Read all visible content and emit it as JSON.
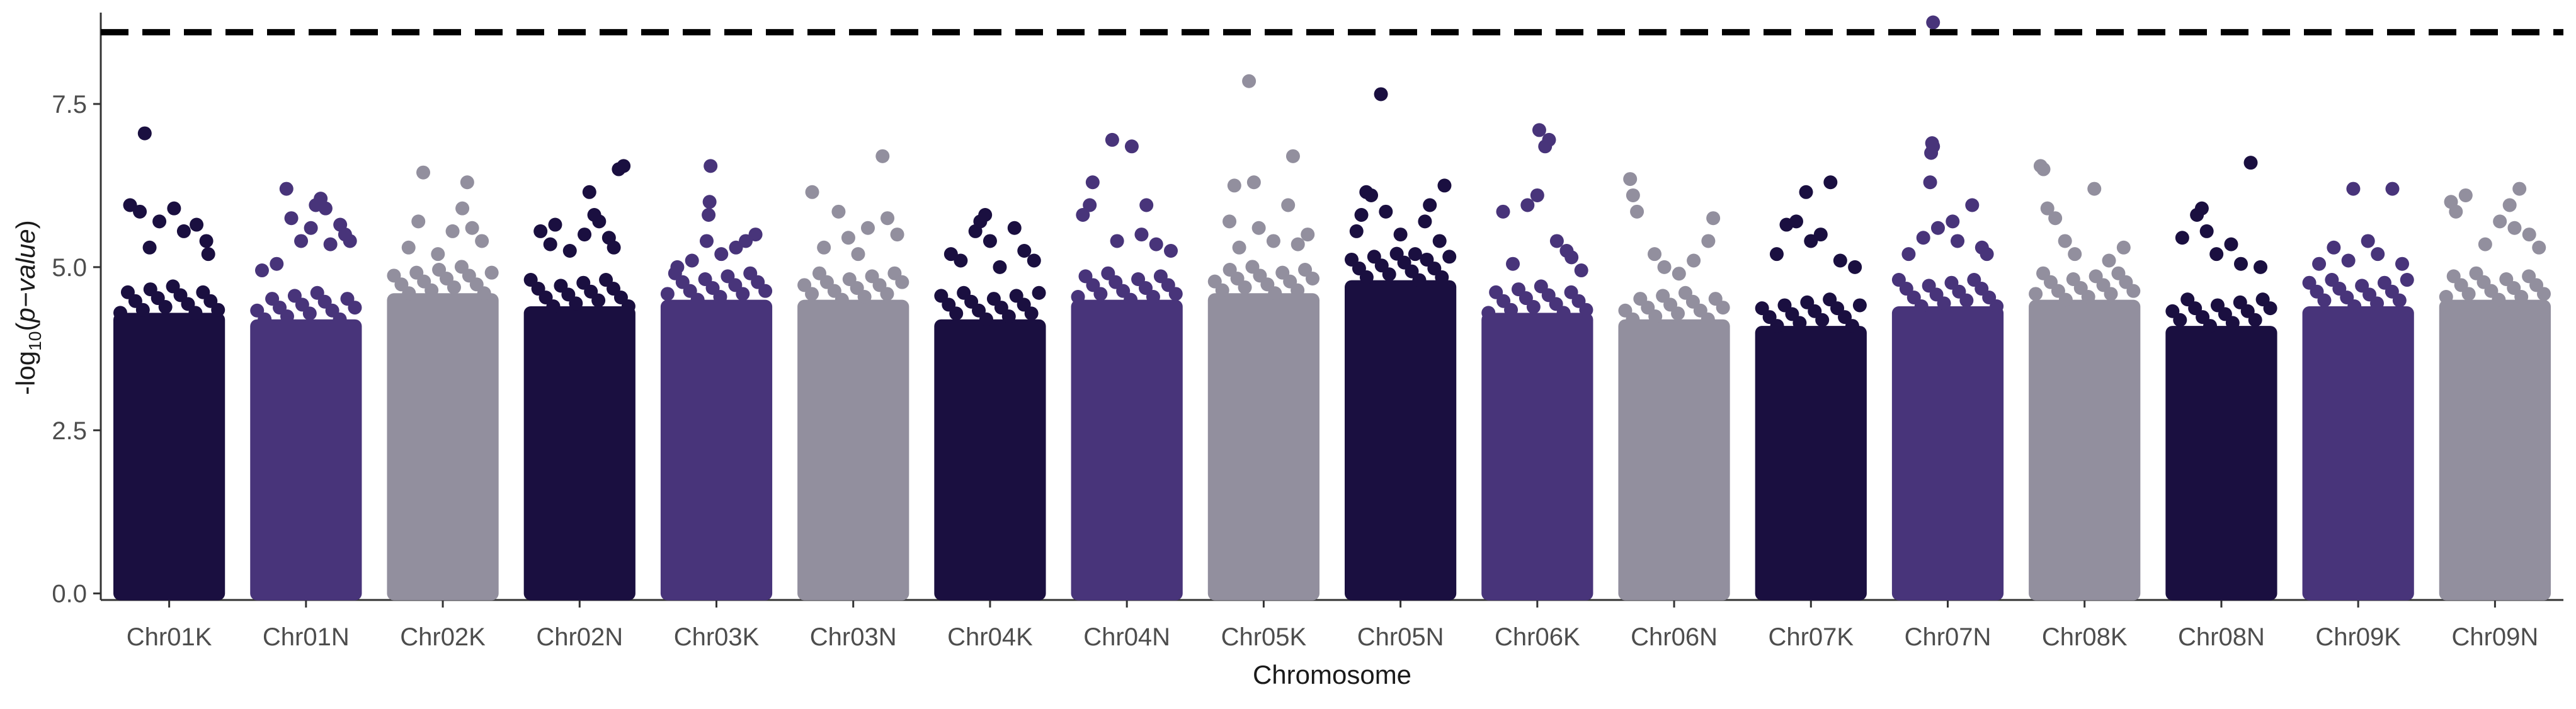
{
  "chart_data": {
    "type": "scatter",
    "subtype": "manhattan",
    "title": "",
    "xlabel": "Chromosome",
    "ylabel": {
      "prefix": "-log",
      "sub": "10",
      "open": "(",
      "italic": "p−value",
      "close": ")"
    },
    "ylim": [
      -0.1,
      8.9
    ],
    "y_ticks": [
      0.0,
      2.5,
      5.0,
      7.5
    ],
    "y_tick_labels": [
      "0.0",
      "2.5",
      "5.0",
      "7.5"
    ],
    "threshold": {
      "value": 8.6,
      "style": "dashed",
      "color": "#000000"
    },
    "grid": false,
    "legend": "none",
    "palette": [
      "#1a0f40",
      "#48347a",
      "#928f9e"
    ],
    "categories": [
      "Chr01K",
      "Chr01N",
      "Chr02K",
      "Chr02N",
      "Chr03K",
      "Chr03N",
      "Chr04K",
      "Chr04N",
      "Chr05K",
      "Chr05N",
      "Chr06K",
      "Chr06N",
      "Chr07K",
      "Chr07N",
      "Chr08K",
      "Chr08N",
      "Chr09K",
      "Chr09N"
    ],
    "series": [
      {
        "chrom": "Chr01K",
        "color_index": 0,
        "dense_max": 4.3,
        "points": [
          [
            0.1,
            5.95
          ],
          [
            0.2,
            5.85
          ],
          [
            0.3,
            5.3
          ],
          [
            0.4,
            5.7
          ],
          [
            0.55,
            5.9
          ],
          [
            0.65,
            5.55
          ],
          [
            0.78,
            5.65
          ],
          [
            0.88,
            5.4
          ],
          [
            0.25,
            7.05
          ],
          [
            0.9,
            5.2
          ]
        ]
      },
      {
        "chrom": "Chr01N",
        "color_index": 1,
        "dense_max": 4.2,
        "points": [
          [
            0.05,
            4.95
          ],
          [
            0.2,
            5.05
          ],
          [
            0.3,
            6.2
          ],
          [
            0.35,
            5.75
          ],
          [
            0.45,
            5.4
          ],
          [
            0.55,
            5.6
          ],
          [
            0.6,
            5.95
          ],
          [
            0.65,
            6.05
          ],
          [
            0.7,
            5.9
          ],
          [
            0.75,
            5.35
          ],
          [
            0.85,
            5.65
          ],
          [
            0.9,
            5.5
          ],
          [
            0.95,
            5.4
          ]
        ]
      },
      {
        "chrom": "Chr02K",
        "color_index": 2,
        "dense_max": 4.6,
        "points": [
          [
            0.15,
            5.3
          ],
          [
            0.25,
            5.7
          ],
          [
            0.3,
            6.45
          ],
          [
            0.45,
            5.2
          ],
          [
            0.6,
            5.55
          ],
          [
            0.7,
            5.9
          ],
          [
            0.75,
            6.3
          ],
          [
            0.8,
            5.6
          ],
          [
            0.9,
            5.4
          ]
        ]
      },
      {
        "chrom": "Chr02N",
        "color_index": 0,
        "dense_max": 4.4,
        "points": [
          [
            0.1,
            5.55
          ],
          [
            0.2,
            5.35
          ],
          [
            0.25,
            5.65
          ],
          [
            0.4,
            5.25
          ],
          [
            0.55,
            5.5
          ],
          [
            0.6,
            6.15
          ],
          [
            0.65,
            5.8
          ],
          [
            0.7,
            5.7
          ],
          [
            0.8,
            5.45
          ],
          [
            0.9,
            6.5
          ],
          [
            0.95,
            6.55
          ],
          [
            0.85,
            5.3
          ]
        ]
      },
      {
        "chrom": "Chr03K",
        "color_index": 1,
        "dense_max": 4.5,
        "points": [
          [
            0.1,
            5.0
          ],
          [
            0.25,
            5.1
          ],
          [
            0.4,
            5.4
          ],
          [
            0.42,
            5.8
          ],
          [
            0.43,
            6.0
          ],
          [
            0.44,
            6.55
          ],
          [
            0.55,
            5.2
          ],
          [
            0.7,
            5.3
          ],
          [
            0.8,
            5.4
          ],
          [
            0.9,
            5.5
          ]
        ]
      },
      {
        "chrom": "Chr03N",
        "color_index": 2,
        "dense_max": 4.5,
        "points": [
          [
            0.08,
            6.15
          ],
          [
            0.2,
            5.3
          ],
          [
            0.35,
            5.85
          ],
          [
            0.45,
            5.45
          ],
          [
            0.55,
            5.2
          ],
          [
            0.65,
            5.6
          ],
          [
            0.8,
            6.7
          ],
          [
            0.85,
            5.75
          ],
          [
            0.95,
            5.5
          ]
        ]
      },
      {
        "chrom": "Chr04K",
        "color_index": 0,
        "dense_max": 4.2,
        "points": [
          [
            0.1,
            5.2
          ],
          [
            0.2,
            5.1
          ],
          [
            0.35,
            5.55
          ],
          [
            0.4,
            5.7
          ],
          [
            0.45,
            5.8
          ],
          [
            0.5,
            5.4
          ],
          [
            0.6,
            5.0
          ],
          [
            0.75,
            5.6
          ],
          [
            0.85,
            5.25
          ],
          [
            0.95,
            5.1
          ]
        ]
      },
      {
        "chrom": "Chr04N",
        "color_index": 1,
        "dense_max": 4.5,
        "points": [
          [
            0.05,
            5.8
          ],
          [
            0.12,
            5.95
          ],
          [
            0.15,
            6.3
          ],
          [
            0.35,
            6.95
          ],
          [
            0.4,
            5.4
          ],
          [
            0.55,
            6.85
          ],
          [
            0.65,
            5.5
          ],
          [
            0.7,
            5.95
          ],
          [
            0.8,
            5.35
          ],
          [
            0.95,
            5.25
          ]
        ]
      },
      {
        "chrom": "Chr05K",
        "color_index": 2,
        "dense_max": 4.6,
        "points": [
          [
            0.15,
            5.7
          ],
          [
            0.2,
            6.25
          ],
          [
            0.25,
            5.3
          ],
          [
            0.35,
            7.85
          ],
          [
            0.4,
            6.3
          ],
          [
            0.45,
            5.6
          ],
          [
            0.6,
            5.4
          ],
          [
            0.75,
            5.95
          ],
          [
            0.8,
            6.7
          ],
          [
            0.85,
            5.35
          ],
          [
            0.95,
            5.5
          ]
        ]
      },
      {
        "chrom": "Chr05N",
        "color_index": 0,
        "dense_max": 4.8,
        "points": [
          [
            0.05,
            5.55
          ],
          [
            0.1,
            5.8
          ],
          [
            0.15,
            6.15
          ],
          [
            0.2,
            6.1
          ],
          [
            0.3,
            7.65
          ],
          [
            0.35,
            5.85
          ],
          [
            0.5,
            5.5
          ],
          [
            0.65,
            5.2
          ],
          [
            0.75,
            5.7
          ],
          [
            0.8,
            5.95
          ],
          [
            0.9,
            5.4
          ],
          [
            0.95,
            6.25
          ]
        ]
      },
      {
        "chrom": "Chr06K",
        "color_index": 1,
        "dense_max": 4.3,
        "points": [
          [
            0.15,
            5.85
          ],
          [
            0.25,
            5.05
          ],
          [
            0.4,
            5.95
          ],
          [
            0.5,
            6.1
          ],
          [
            0.52,
            7.1
          ],
          [
            0.58,
            6.85
          ],
          [
            0.62,
            6.95
          ],
          [
            0.7,
            5.4
          ],
          [
            0.8,
            5.25
          ],
          [
            0.85,
            5.15
          ],
          [
            0.95,
            4.95
          ]
        ]
      },
      {
        "chrom": "Chr06N",
        "color_index": 2,
        "dense_max": 4.2,
        "points": [
          [
            0.05,
            6.35
          ],
          [
            0.08,
            6.1
          ],
          [
            0.12,
            5.85
          ],
          [
            0.3,
            5.2
          ],
          [
            0.4,
            5.0
          ],
          [
            0.55,
            4.9
          ],
          [
            0.7,
            5.1
          ],
          [
            0.85,
            5.4
          ],
          [
            0.9,
            5.75
          ]
        ]
      },
      {
        "chrom": "Chr07K",
        "color_index": 0,
        "dense_max": 4.1,
        "points": [
          [
            0.15,
            5.2
          ],
          [
            0.25,
            5.65
          ],
          [
            0.35,
            5.7
          ],
          [
            0.45,
            6.15
          ],
          [
            0.5,
            5.4
          ],
          [
            0.6,
            5.5
          ],
          [
            0.7,
            6.3
          ],
          [
            0.8,
            5.1
          ],
          [
            0.95,
            5.0
          ]
        ]
      },
      {
        "chrom": "Chr07N",
        "color_index": 1,
        "dense_max": 4.4,
        "points": [
          [
            0.1,
            5.2
          ],
          [
            0.25,
            5.45
          ],
          [
            0.32,
            6.3
          ],
          [
            0.33,
            6.75
          ],
          [
            0.34,
            6.9
          ],
          [
            0.35,
            6.85
          ],
          [
            0.4,
            5.6
          ],
          [
            0.55,
            5.7
          ],
          [
            0.6,
            5.4
          ],
          [
            0.75,
            5.95
          ],
          [
            0.85,
            5.3
          ],
          [
            0.9,
            5.2
          ],
          [
            0.35,
            8.75
          ]
        ]
      },
      {
        "chrom": "Chr08K",
        "color_index": 2,
        "dense_max": 4.5,
        "points": [
          [
            0.05,
            6.55
          ],
          [
            0.08,
            6.5
          ],
          [
            0.12,
            5.9
          ],
          [
            0.2,
            5.75
          ],
          [
            0.3,
            5.4
          ],
          [
            0.4,
            5.2
          ],
          [
            0.6,
            6.2
          ],
          [
            0.75,
            5.1
          ],
          [
            0.9,
            5.3
          ]
        ]
      },
      {
        "chrom": "Chr08N",
        "color_index": 0,
        "dense_max": 4.1,
        "points": [
          [
            0.1,
            5.45
          ],
          [
            0.25,
            5.8
          ],
          [
            0.3,
            5.9
          ],
          [
            0.35,
            5.55
          ],
          [
            0.45,
            5.2
          ],
          [
            0.6,
            5.35
          ],
          [
            0.7,
            5.05
          ],
          [
            0.8,
            6.6
          ],
          [
            0.9,
            5.0
          ]
        ]
      },
      {
        "chrom": "Chr09K",
        "color_index": 1,
        "dense_max": 4.4,
        "points": [
          [
            0.1,
            5.05
          ],
          [
            0.25,
            5.3
          ],
          [
            0.4,
            5.1
          ],
          [
            0.45,
            6.2
          ],
          [
            0.6,
            5.4
          ],
          [
            0.7,
            5.2
          ],
          [
            0.85,
            6.2
          ],
          [
            0.95,
            5.05
          ]
        ]
      },
      {
        "chrom": "Chr09N",
        "color_index": 2,
        "dense_max": 4.5,
        "points": [
          [
            0.05,
            6.0
          ],
          [
            0.1,
            5.85
          ],
          [
            0.2,
            6.1
          ],
          [
            0.4,
            5.35
          ],
          [
            0.55,
            5.7
          ],
          [
            0.65,
            5.95
          ],
          [
            0.7,
            5.6
          ],
          [
            0.75,
            6.2
          ],
          [
            0.85,
            5.5
          ],
          [
            0.95,
            5.3
          ]
        ]
      }
    ]
  }
}
